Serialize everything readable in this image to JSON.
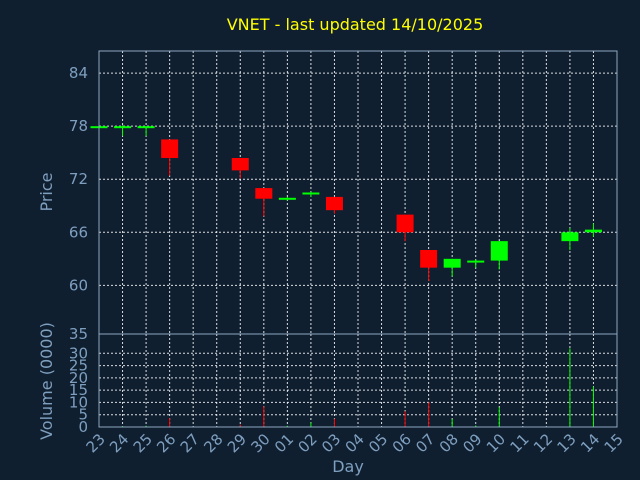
{
  "chart_data": {
    "type": "candlestick",
    "title": "VNET - last updated 14/10/2025",
    "xlabel": "Day",
    "ylabel": "Price",
    "volume_label": "Volume (0000)",
    "colors": {
      "up": "#00ff00",
      "down": "#ff0000",
      "title": "#ffff00",
      "text": "#7f9fbf",
      "background": "#0f1f30"
    },
    "x_ticks": [
      "23",
      "24",
      "25",
      "26",
      "27",
      "28",
      "29",
      "30",
      "01",
      "02",
      "03",
      "04",
      "05",
      "06",
      "07",
      "08",
      "09",
      "10",
      "11",
      "12",
      "13",
      "14",
      "15"
    ],
    "price_ticks": [
      60,
      66,
      72,
      78,
      84
    ],
    "price_range": [
      54.5,
      86.5
    ],
    "volume_ticks": [
      0,
      5,
      10,
      15,
      20,
      25,
      30,
      35
    ],
    "volume_range": [
      0,
      35
    ],
    "grid": true,
    "candles": [
      {
        "day": "23",
        "open": 77.9,
        "high": 78.1,
        "low": 77.8,
        "close": 78.0,
        "volume": 0.3
      },
      {
        "day": "24",
        "open": 77.8,
        "high": 78.1,
        "low": 76.9,
        "close": 78.0,
        "volume": 0.4
      },
      {
        "day": "25",
        "open": 77.8,
        "high": 78.0,
        "low": 76.9,
        "close": 78.0,
        "volume": 0.5
      },
      {
        "day": "26",
        "open": 76.5,
        "high": 76.5,
        "low": 72.4,
        "close": 74.4,
        "volume": 3.6
      },
      {
        "day": "29",
        "open": 74.4,
        "high": 74.4,
        "low": 72.1,
        "close": 73.0,
        "volume": 1.0
      },
      {
        "day": "30",
        "open": 71.0,
        "high": 71.0,
        "low": 67.8,
        "close": 69.8,
        "volume": 8.4
      },
      {
        "day": "01",
        "open": 69.8,
        "high": 70.0,
        "low": 69.6,
        "close": 69.9,
        "volume": 0.5
      },
      {
        "day": "02",
        "open": 70.3,
        "high": 70.6,
        "low": 70.0,
        "close": 70.5,
        "volume": 1.8
      },
      {
        "day": "03",
        "open": 70.0,
        "high": 70.0,
        "low": 68.1,
        "close": 68.5,
        "volume": 3.4
      },
      {
        "day": "06",
        "open": 68.0,
        "high": 68.0,
        "low": 65.0,
        "close": 66.0,
        "volume": 6.4
      },
      {
        "day": "07",
        "open": 64.0,
        "high": 64.0,
        "low": 60.5,
        "close": 62.0,
        "volume": 10.0
      },
      {
        "day": "08",
        "open": 62.0,
        "high": 63.0,
        "low": 61.0,
        "close": 63.0,
        "volume": 3.3
      },
      {
        "day": "09",
        "open": 62.6,
        "high": 62.9,
        "low": 62.0,
        "close": 62.8,
        "volume": 0.6
      },
      {
        "day": "10",
        "open": 62.8,
        "high": 65.0,
        "low": 61.8,
        "close": 65.0,
        "volume": 8.0
      },
      {
        "day": "13",
        "open": 65.0,
        "high": 66.5,
        "low": 64.0,
        "close": 66.0,
        "volume": 32.0
      },
      {
        "day": "14",
        "open": 66.0,
        "high": 67.0,
        "low": 65.5,
        "close": 66.3,
        "volume": 16.5
      }
    ]
  }
}
